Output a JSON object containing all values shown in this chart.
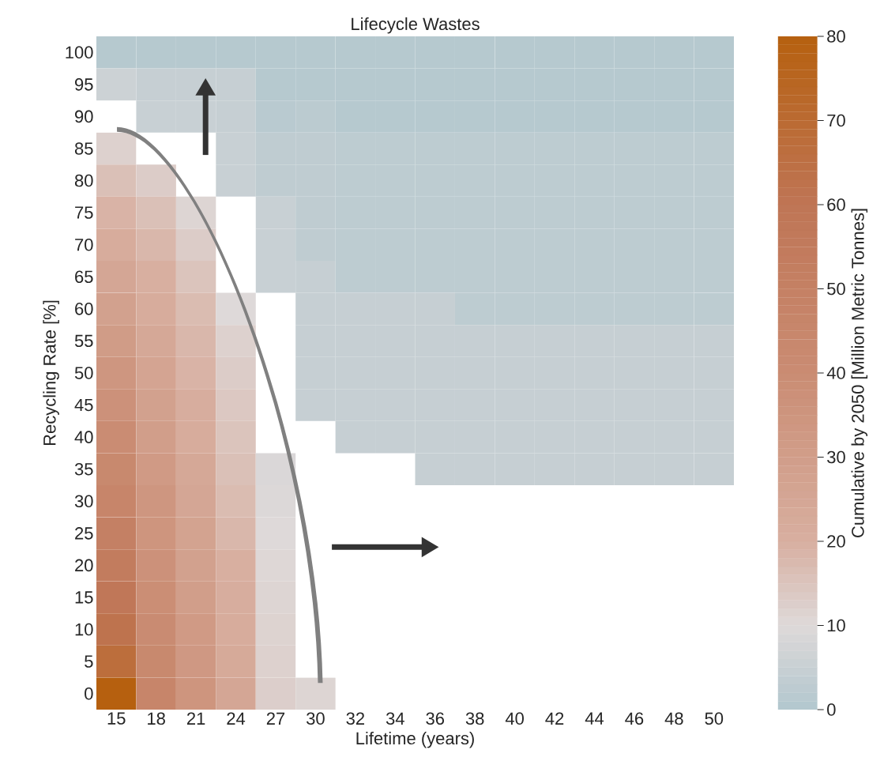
{
  "chart_data": {
    "type": "heatmap",
    "title": "Lifecycle Wastes",
    "xlabel": "Lifetime (years)",
    "ylabel": "Recycling Rate [%]",
    "clabel": "Cumulative by 2050 [Million Metric Tonnes]",
    "categories": [
      "15",
      "18",
      "21",
      "24",
      "27",
      "30",
      "32",
      "34",
      "36",
      "38",
      "40",
      "42",
      "44",
      "46",
      "48",
      "50"
    ],
    "y_categories": [
      "100",
      "95",
      "90",
      "85",
      "80",
      "75",
      "70",
      "65",
      "60",
      "55",
      "50",
      "45",
      "40",
      "35",
      "30",
      "25",
      "20",
      "15",
      "10",
      "5",
      "0"
    ],
    "cells": [
      [
        1,
        1,
        1,
        1,
        1,
        1,
        1,
        1,
        1,
        1,
        1,
        1,
        1,
        1,
        1,
        1
      ],
      [
        6,
        4.5,
        4.5,
        4.5,
        1,
        1,
        1,
        1,
        1,
        1,
        1,
        1,
        1,
        1,
        1,
        1
      ],
      [
        null,
        5,
        5,
        4.5,
        1.5,
        2,
        1,
        1,
        1,
        1,
        1,
        1,
        1,
        1,
        1,
        1
      ],
      [
        12,
        null,
        null,
        5,
        3,
        3,
        2.5,
        2.5,
        2.5,
        2.5,
        2.5,
        2.5,
        2.5,
        2.5,
        2.5,
        2.5
      ],
      [
        16,
        13,
        null,
        5,
        3,
        3,
        2.5,
        2.5,
        2.5,
        2.5,
        2.5,
        2.5,
        2.5,
        2.5,
        2.5,
        2.5
      ],
      [
        19,
        16,
        11,
        null,
        5,
        3,
        2.5,
        2.5,
        2.5,
        2.5,
        2.5,
        2.5,
        2.5,
        2.5,
        2.5,
        2.5
      ],
      [
        22,
        18,
        13,
        null,
        5,
        3,
        2.5,
        2.5,
        2.5,
        2.5,
        2.5,
        2.5,
        2.5,
        2.5,
        2.5,
        2.5
      ],
      [
        25,
        20,
        15,
        null,
        5,
        4.5,
        2.5,
        2.5,
        2.5,
        2.5,
        2.5,
        2.5,
        2.5,
        2.5,
        2.5,
        2.5
      ],
      [
        28,
        22,
        17,
        10,
        null,
        4.5,
        4.5,
        4.5,
        4.5,
        2.5,
        2.5,
        2.5,
        2.5,
        2.5,
        2.5,
        2.5
      ],
      [
        31,
        24,
        18,
        12,
        null,
        4.5,
        4.5,
        4.5,
        4.5,
        4.5,
        4.5,
        4.5,
        4.5,
        4.5,
        4.5,
        4.5
      ],
      [
        34,
        26,
        19,
        13,
        null,
        4.5,
        4.5,
        4.5,
        4.5,
        4.5,
        4.5,
        4.5,
        4.5,
        4.5,
        4.5,
        4.5
      ],
      [
        37,
        28,
        21,
        14,
        null,
        4.5,
        4.5,
        4.5,
        4.5,
        4.5,
        4.5,
        4.5,
        4.5,
        4.5,
        4.5,
        4.5
      ],
      [
        40,
        30,
        22,
        15,
        null,
        null,
        4.5,
        4.5,
        4.5,
        4.5,
        4.5,
        4.5,
        4.5,
        4.5,
        4.5,
        4.5
      ],
      [
        43,
        32,
        24,
        16,
        9,
        null,
        null,
        null,
        4.5,
        4.5,
        4.5,
        4.5,
        4.5,
        4.5,
        4.5,
        4.5
      ],
      [
        46,
        34,
        25,
        17,
        9.5,
        null,
        null,
        null,
        null,
        null,
        null,
        null,
        null,
        null,
        null,
        null
      ],
      [
        50,
        35,
        27,
        18,
        10,
        null,
        null,
        null,
        null,
        null,
        null,
        null,
        null,
        null,
        null,
        null
      ],
      [
        54,
        37,
        28,
        20,
        10.5,
        null,
        null,
        null,
        null,
        null,
        null,
        null,
        null,
        null,
        null,
        null
      ],
      [
        58,
        39,
        30,
        21,
        11,
        null,
        null,
        null,
        null,
        null,
        null,
        null,
        null,
        null,
        null,
        null
      ],
      [
        62,
        41,
        32,
        22,
        11.5,
        null,
        null,
        null,
        null,
        null,
        null,
        null,
        null,
        null,
        null,
        null
      ],
      [
        67,
        43,
        33,
        23,
        12,
        null,
        null,
        null,
        null,
        null,
        null,
        null,
        null,
        null,
        null,
        null
      ],
      [
        80,
        46,
        35,
        25,
        12.5,
        11,
        null,
        null,
        null,
        null,
        null,
        null,
        null,
        null,
        null,
        null
      ]
    ],
    "clim": [
      0,
      80
    ],
    "cticks": [
      0,
      10,
      20,
      30,
      40,
      50,
      60,
      70,
      80
    ]
  }
}
